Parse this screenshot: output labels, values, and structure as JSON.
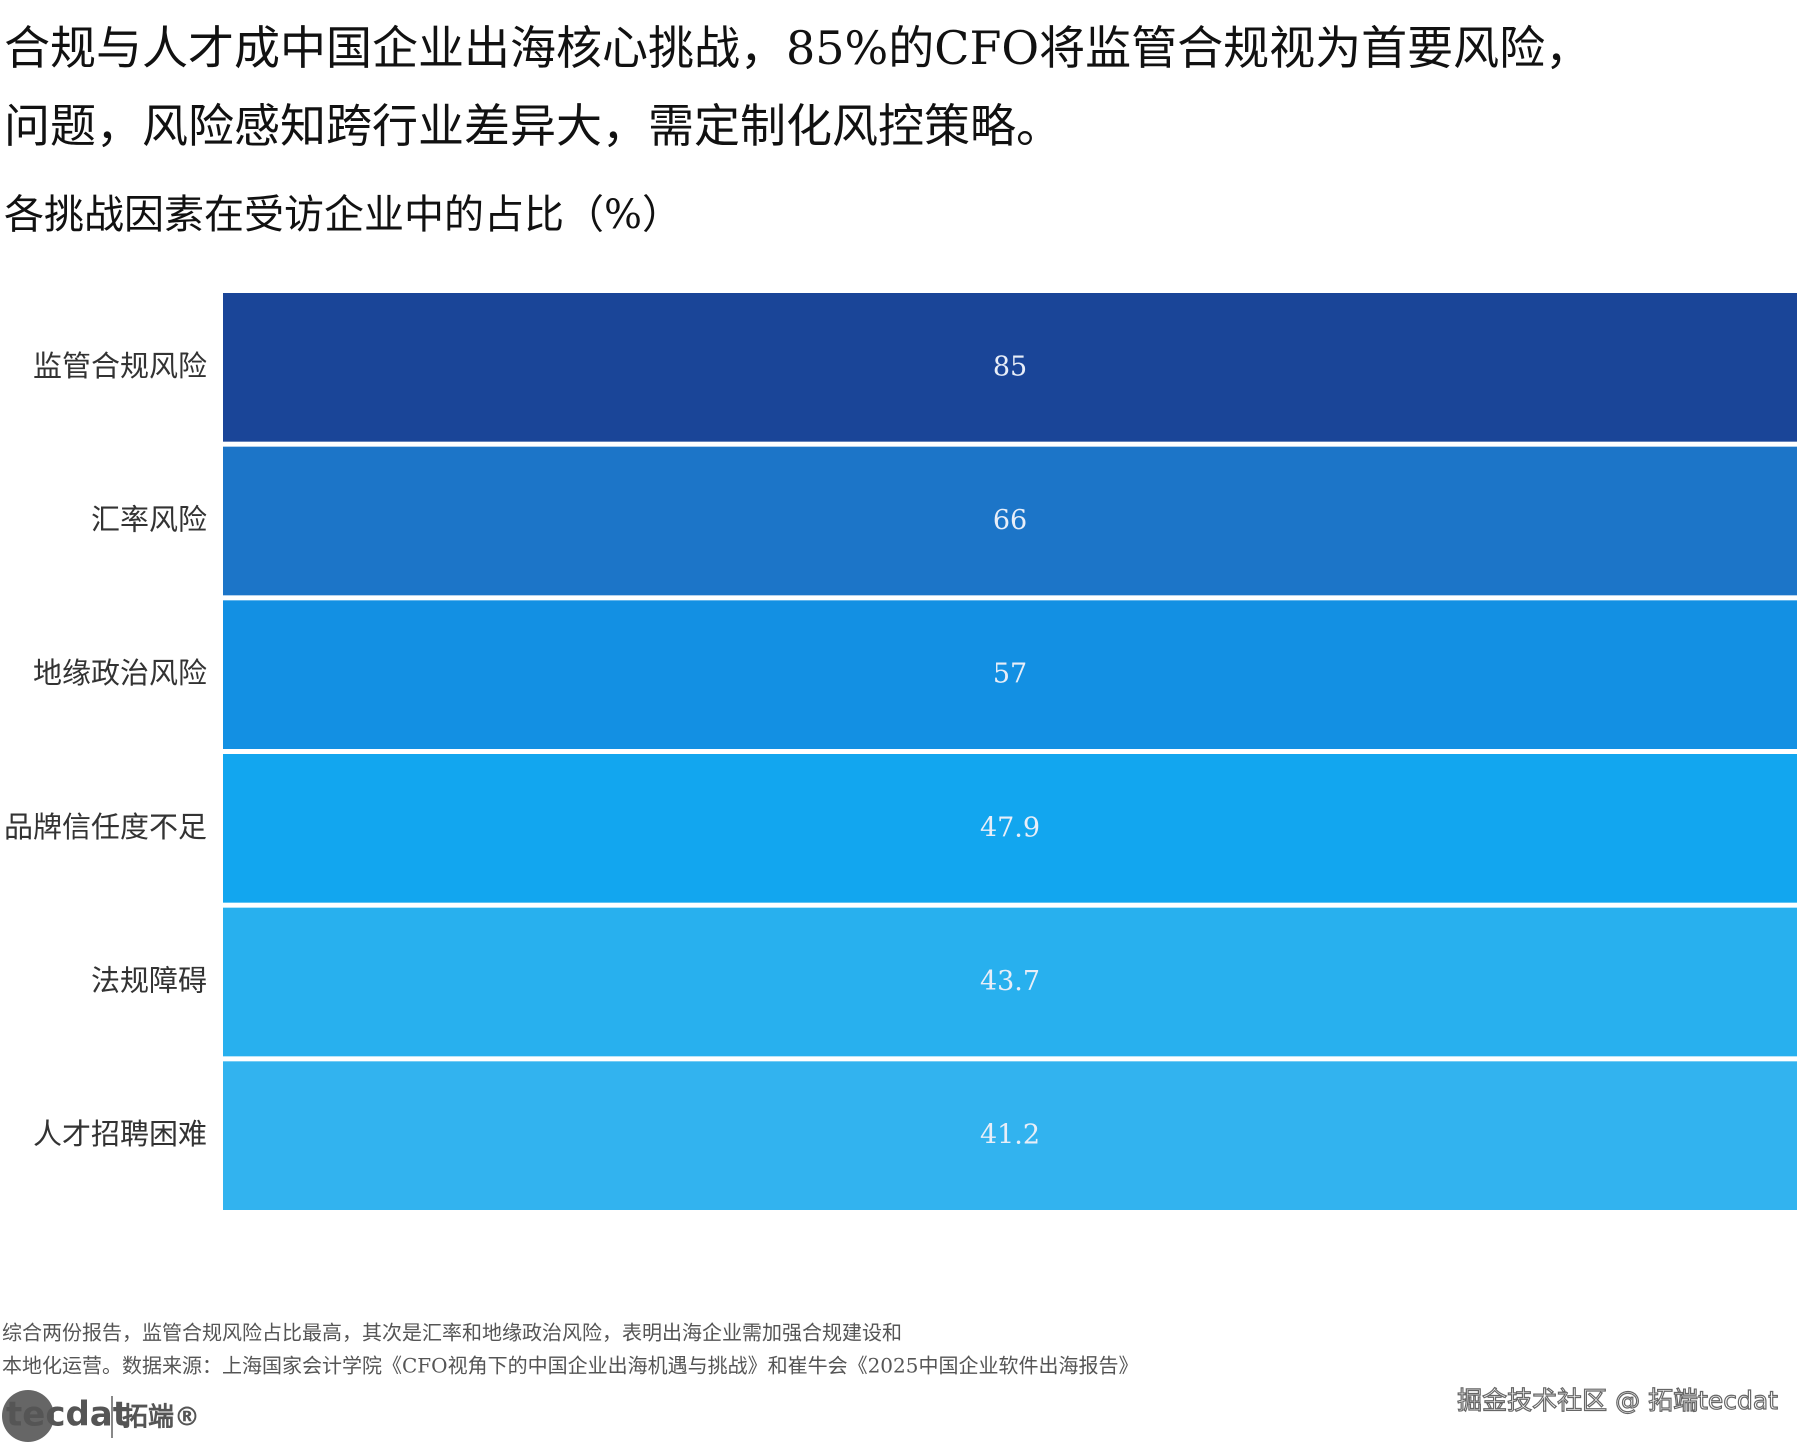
{
  "chart_data": {
    "type": "heatmap",
    "title": [
      "合规与人才成中国企业出海核心挑战，85%的CFO将监管合规视为首要风险，",
      "问题，风险感知跨行业差异大，需定制化风控策略。"
    ],
    "subtitle": "各挑战因素在受访企业中的占比（%）",
    "categories": [
      "监管合规风险",
      "汇率风险",
      "地缘政治风险",
      "品牌信任度不足",
      "法规障碍",
      "人才招聘困难"
    ],
    "values": [
      85,
      66,
      57,
      47.9,
      43.7,
      41.2
    ],
    "colors": [
      "#1a4598",
      "#1c75c8",
      "#1390e3",
      "#12a6ef",
      "#28b0ee",
      "#32b3ef"
    ],
    "note": [
      "综合两份报告，监管合规风险占比最高，其次是汇率和地缘政治风险，表明出海企业需加强合规建设和",
      "本地化运营。数据来源：上海国家会计学院《CFO视角下的中国企业出海机遇与挑战》和崔牛会《2025中国企业软件出海报告》"
    ],
    "logo": [
      "tecdat",
      "拓端®"
    ],
    "watermark": "掘金技术社区 @ 拓端tecdat"
  }
}
